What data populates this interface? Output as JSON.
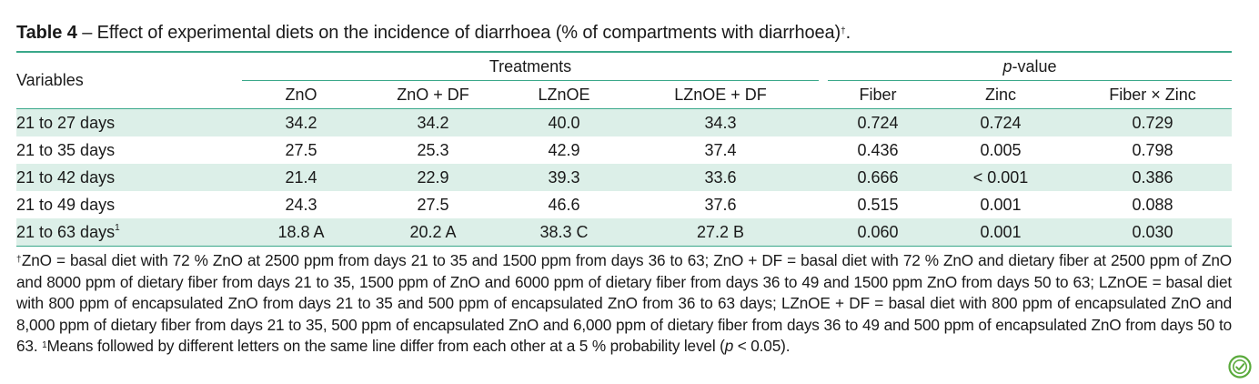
{
  "caption": {
    "label": "Table 4",
    "text": " – Effect of experimental diets on the incidence of diarrhoea (% of compartments with diarrhoea)",
    "mark": "†",
    "end": "."
  },
  "header": {
    "variables": "Variables",
    "group_treatments": "Treatments",
    "group_pvalue_italic": "p",
    "group_pvalue_rest": "-value",
    "columns": [
      "ZnO",
      "ZnO + DF",
      "LZnOE",
      "LZnOE + DF",
      "Fiber",
      "Zinc",
      "Fiber × Zinc"
    ]
  },
  "rows": [
    {
      "label": "21 to 27 days",
      "sup": "",
      "values": [
        "34.2",
        "34.2",
        "40.0",
        "34.3",
        "0.724",
        "0.724",
        "0.729"
      ]
    },
    {
      "label": "21 to 35 days",
      "sup": "",
      "values": [
        "27.5",
        "25.3",
        "42.9",
        "37.4",
        "0.436",
        "0.005",
        "0.798"
      ]
    },
    {
      "label": "21 to 42 days",
      "sup": "",
      "values": [
        "21.4",
        "22.9",
        "39.3",
        "33.6",
        "0.666",
        "< 0.001",
        "0.386"
      ]
    },
    {
      "label": "21 to 49 days",
      "sup": "",
      "values": [
        "24.3",
        "27.5",
        "46.6",
        "37.6",
        "0.515",
        "0.001",
        "0.088"
      ]
    },
    {
      "label": "21 to 63 days",
      "sup": "1",
      "values": [
        "18.8 A",
        "20.2 A",
        "38.3 C",
        "27.2 B",
        "0.060",
        "0.001",
        "0.030"
      ]
    }
  ],
  "footnote": {
    "mark1": "†",
    "text1": "ZnO = basal diet with 72 % ZnO at 2500 ppm from days 21 to 35 and 1500 ppm from days 36 to 63; ZnO + DF = basal diet with 72 % ZnO and dietary fiber at 2500 ppm of ZnO and 8000 ppm of dietary fiber from days 21 to 35, 1500 ppm of ZnO and 6000 ppm of dietary fiber from days 36 to 49 and 1500 ppm ZnO from days 50 to 63; LZnOE = basal diet with 800 ppm of encapsulated ZnO from days 21 to 35 and 500 ppm of encapsulated ZnO from 36 to 63 days; LZnOE + DF = basal diet with 800 ppm of encapsulated ZnO and 8,000 ppm of dietary fiber from days 21 to 35, 500 ppm of encapsulated ZnO and 6,000 ppm of dietary fiber from days 36 to 49 and 500 ppm of encapsulated ZnO from days 50 to 63. ",
    "mark2": "1",
    "text2": "Means followed by different letters on the same line differ from each other at a 5 % probability level (",
    "p_italic": "p",
    "text3": " < 0.05)."
  },
  "colors": {
    "rule": "#3aa88a",
    "shade": "#dcefe8",
    "badge": "#5aaa3c"
  },
  "badge_icon": "open-access-icon"
}
